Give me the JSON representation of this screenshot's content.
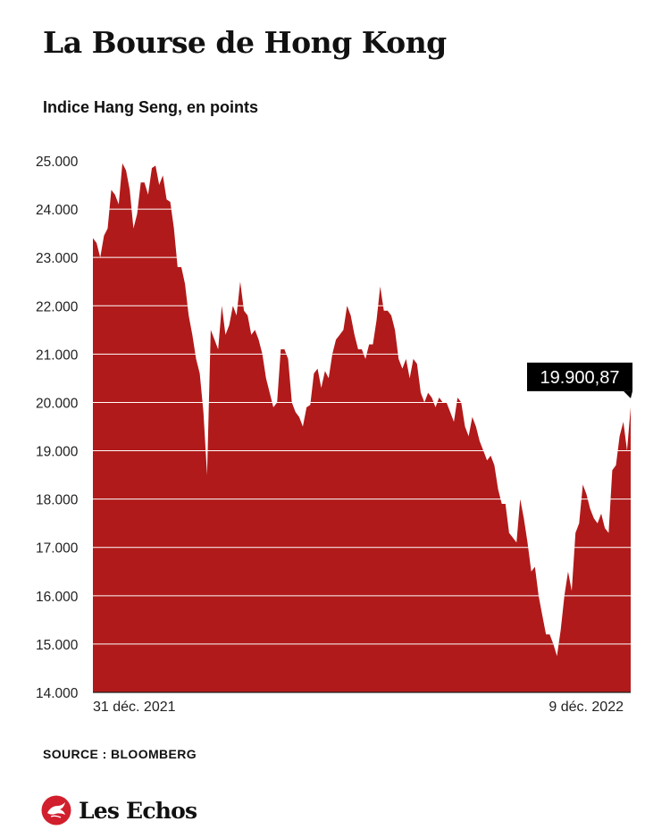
{
  "title": "La Bourse de Hong Kong",
  "subtitle": "Indice Hang Seng, en points",
  "source": "SOURCE : BLOOMBERG",
  "brand": {
    "name": "Les Echos",
    "logo_icon": "les-echos-seal-icon"
  },
  "colors": {
    "series": "#b11a1a",
    "grid": "#ffffff",
    "axis": "#222222",
    "label_bg": "#000000"
  },
  "chart_data": {
    "type": "area",
    "title": "La Bourse de Hong Kong",
    "subtitle": "Indice Hang Seng, en points",
    "xlabel": "",
    "ylabel": "",
    "ylim": [
      14000,
      25000
    ],
    "y_ticks": [
      14000,
      15000,
      16000,
      17000,
      18000,
      19000,
      20000,
      21000,
      22000,
      23000,
      24000,
      25000
    ],
    "y_tick_labels": [
      "14.000",
      "15.000",
      "16.000",
      "17.000",
      "18.000",
      "19.000",
      "20.000",
      "21.000",
      "22.000",
      "23.000",
      "24.000",
      "25.000"
    ],
    "x_tick_labels": [
      "31 déc. 2021",
      "9 déc. 2022"
    ],
    "grid": true,
    "end_label": "19.900,87",
    "series": [
      {
        "values": [
          23400,
          23300,
          23000,
          23450,
          23600,
          24400,
          24300,
          24100,
          24950,
          24800,
          24400,
          23600,
          23900,
          24550,
          24550,
          24300,
          24850,
          24900,
          24500,
          24700,
          24200,
          24150,
          23600,
          22800,
          22800,
          22450,
          21800,
          21400,
          20900,
          20600,
          19800,
          18500,
          21500,
          21300,
          21100,
          22000,
          21400,
          21600,
          22000,
          21800,
          22500,
          21900,
          21800,
          21400,
          21500,
          21300,
          21000,
          20500,
          20200,
          19900,
          20000,
          21100,
          21100,
          20900,
          20000,
          19800,
          19700,
          19500,
          19900,
          19950,
          20600,
          20700,
          20300,
          20650,
          20500,
          21000,
          21300,
          21400,
          21500,
          22000,
          21800,
          21400,
          21100,
          21100,
          20900,
          21200,
          21200,
          21700,
          22400,
          21900,
          21900,
          21800,
          21500,
          20900,
          20700,
          20900,
          20500,
          20900,
          20800,
          20200,
          20000,
          20200,
          20100,
          19900,
          20100,
          20000,
          20000,
          19800,
          19600,
          20100,
          20000,
          19500,
          19300,
          19700,
          19500,
          19200,
          19000,
          18800,
          18900,
          18700,
          18200,
          17900,
          17900,
          17300,
          17200,
          17100,
          18000,
          17600,
          17100,
          16500,
          16600,
          16000,
          15600,
          15200,
          15200,
          15000,
          14750,
          15300,
          16000,
          16500,
          16100,
          17300,
          17500,
          18300,
          18100,
          17800,
          17600,
          17500,
          17700,
          17400,
          17300,
          18600,
          18700,
          19300,
          19600,
          19000,
          19900
        ]
      }
    ]
  }
}
